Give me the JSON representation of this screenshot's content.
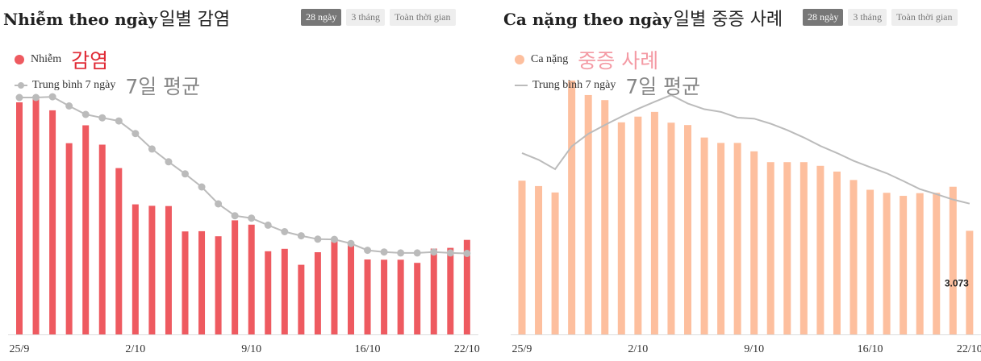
{
  "colors": {
    "infection": "#ee5a60",
    "severe": "#fdbf9e",
    "average": "#bbbbbb",
    "axis": "#dddddd"
  },
  "chart_data": [
    {
      "type": "bar",
      "title": "Nhiễm theo ngày",
      "title_annotation": "일별 감염",
      "tabs": [
        "28 ngày",
        "3 tháng",
        "Toàn thời gian"
      ],
      "active_tab": "28 ngày",
      "legend": [
        {
          "label": "Nhiễm",
          "annotation": "감염"
        },
        {
          "label": "Trung bình 7 ngày",
          "annotation": "7일 평균"
        }
      ],
      "x_ticks": [
        "25/9",
        "2/10",
        "9/10",
        "16/10",
        "22/10"
      ],
      "series": [
        {
          "name": "Nhiễm",
          "type": "bar",
          "values": [
            9600,
            9800,
            9270,
            7910,
            8650,
            7850,
            6880,
            5380,
            5320,
            5310,
            4260,
            4270,
            4060,
            4720,
            4540,
            3440,
            3540,
            2880,
            3400,
            3900,
            3720,
            3100,
            3090,
            3090,
            2960,
            3550,
            3580,
            3910
          ]
        },
        {
          "name": "Trung bình 7 ngày",
          "type": "line",
          "values": [
            9800,
            9800,
            9830,
            9450,
            9100,
            8960,
            8830,
            8310,
            7670,
            7140,
            6640,
            6100,
            5400,
            4910,
            4810,
            4520,
            4250,
            4080,
            3940,
            3930,
            3760,
            3480,
            3410,
            3370,
            3370,
            3410,
            3370,
            3350
          ]
        }
      ],
      "ylim": [
        0,
        10500
      ]
    },
    {
      "type": "bar",
      "title": "Ca nặng theo ngày",
      "title_annotation": "일별 중증 사례",
      "tabs": [
        "28 ngày",
        "3 tháng",
        "Toàn thời gian"
      ],
      "active_tab": "28 ngày",
      "legend": [
        {
          "label": "Ca nặng",
          "annotation": "중증 사례"
        },
        {
          "label": "Trung bình 7 ngày",
          "annotation": "7일 평균"
        }
      ],
      "x_ticks": [
        "25/9",
        "2/10",
        "9/10",
        "16/10",
        "22/10"
      ],
      "data_label": "3.073",
      "series": [
        {
          "name": "Ca nặng",
          "type": "bar",
          "values": [
            4560,
            4400,
            4210,
            7530,
            7100,
            6950,
            6290,
            6460,
            6600,
            6280,
            6210,
            5840,
            5680,
            5680,
            5430,
            5110,
            5110,
            5110,
            5000,
            4830,
            4580,
            4290,
            4200,
            4110,
            4190,
            4200,
            4380,
            3073
          ]
        },
        {
          "name": "Trung bình 7 ngày",
          "type": "line",
          "values": [
            5380,
            5180,
            4900,
            5580,
            5950,
            6210,
            6460,
            6690,
            6900,
            7100,
            6850,
            6680,
            6600,
            6430,
            6400,
            6250,
            6060,
            5840,
            5590,
            5380,
            5150,
            4960,
            4780,
            4550,
            4310,
            4160,
            4000,
            3880
          ]
        }
      ],
      "ylim": [
        0,
        7720
      ]
    }
  ]
}
